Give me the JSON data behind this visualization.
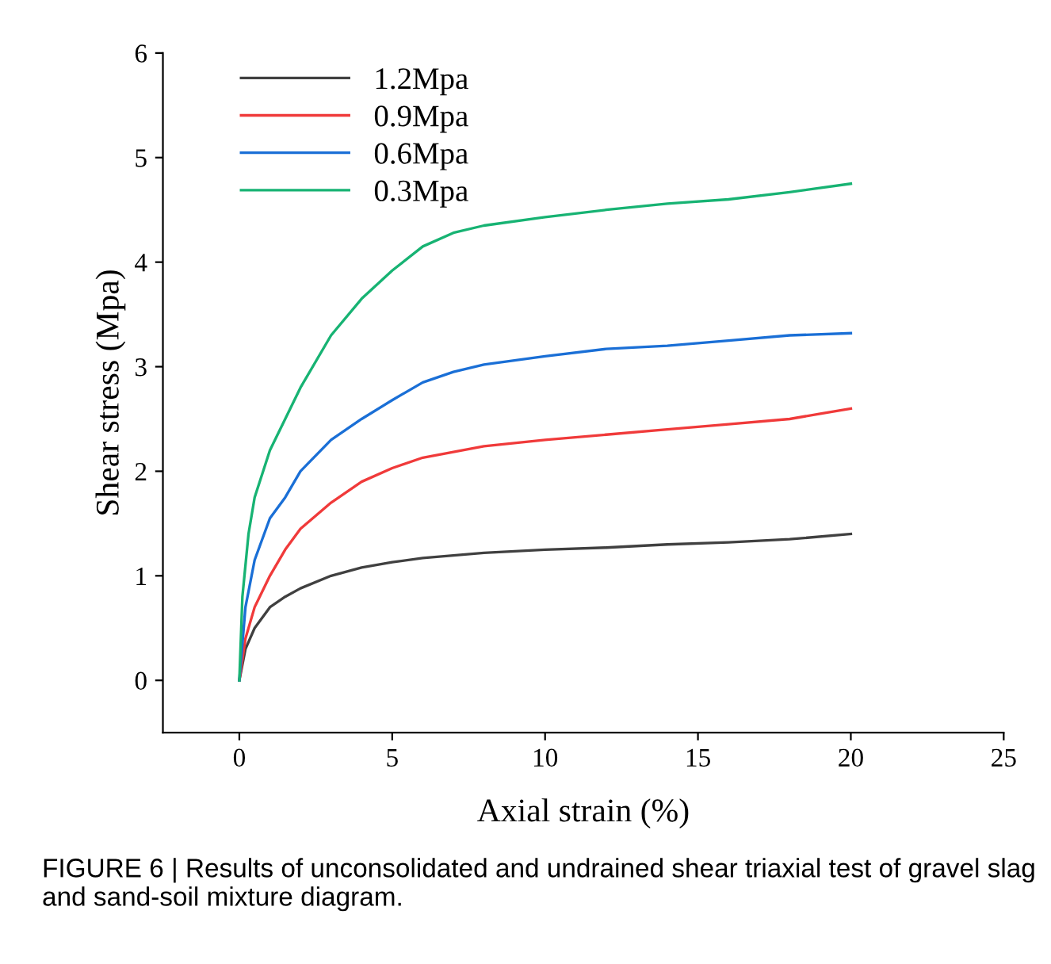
{
  "chart_data": {
    "type": "line",
    "xlabel": "Axial strain (%)",
    "ylabel": "Shear stress (Mpa)",
    "xlim": [
      -2.5,
      25
    ],
    "ylim": [
      -0.5,
      6
    ],
    "xticks": [
      0,
      5,
      10,
      15,
      20,
      25
    ],
    "yticks": [
      0,
      1,
      2,
      3,
      4,
      5,
      6
    ],
    "grid": false,
    "legend": "top left",
    "marker": "none",
    "line_style": "solid",
    "annotations": [
      "FIGURE 6 | Results of unconsolidated and undrained shear triaxial test of gravel slag and sand-soil mixture diagram."
    ],
    "series": [
      {
        "name": "1.2Mpa",
        "color": "#404040",
        "x": [
          0,
          0.2,
          0.5,
          1,
          1.5,
          2,
          3,
          4,
          5,
          6,
          8,
          10,
          12,
          14,
          16,
          18,
          20
        ],
        "values": [
          0,
          0.3,
          0.5,
          0.7,
          0.8,
          0.88,
          1.0,
          1.08,
          1.13,
          1.17,
          1.22,
          1.25,
          1.27,
          1.3,
          1.32,
          1.35,
          1.4
        ]
      },
      {
        "name": "0.9Mpa",
        "color": "#f03a3a",
        "x": [
          0,
          0.2,
          0.5,
          1,
          1.5,
          2,
          3,
          4,
          5,
          6,
          8,
          10,
          12,
          14,
          16,
          18,
          19,
          20
        ],
        "values": [
          0,
          0.4,
          0.7,
          1.0,
          1.25,
          1.45,
          1.7,
          1.9,
          2.03,
          2.13,
          2.24,
          2.3,
          2.35,
          2.4,
          2.45,
          2.5,
          2.55,
          2.6
        ]
      },
      {
        "name": "0.6Mpa",
        "color": "#1a6fd6",
        "x": [
          0,
          0.2,
          0.5,
          1,
          1.5,
          2,
          3,
          4,
          5,
          6,
          7,
          8,
          10,
          12,
          14,
          16,
          18,
          20
        ],
        "values": [
          0,
          0.7,
          1.15,
          1.55,
          1.75,
          2.0,
          2.3,
          2.5,
          2.68,
          2.85,
          2.95,
          3.02,
          3.1,
          3.17,
          3.2,
          3.25,
          3.3,
          3.32
        ]
      },
      {
        "name": "0.3Mpa",
        "color": "#17b373",
        "x": [
          0,
          0.1,
          0.3,
          0.5,
          1,
          1.5,
          2,
          3,
          4,
          5,
          6,
          7,
          8,
          10,
          12,
          14,
          16,
          18,
          20
        ],
        "values": [
          0,
          0.8,
          1.4,
          1.75,
          2.2,
          2.5,
          2.8,
          3.3,
          3.65,
          3.92,
          4.15,
          4.28,
          4.35,
          4.43,
          4.5,
          4.56,
          4.6,
          4.67,
          4.75
        ]
      }
    ]
  }
}
